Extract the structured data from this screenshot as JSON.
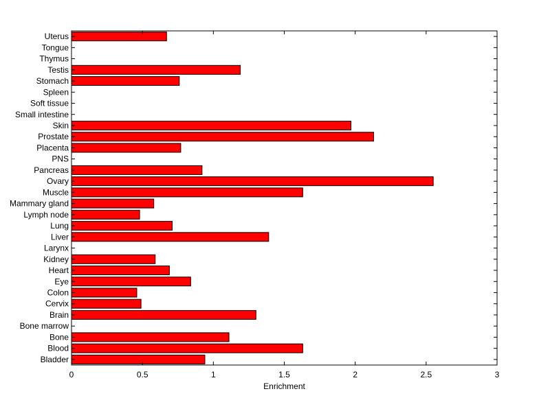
{
  "chart_data": {
    "type": "bar",
    "orientation": "horizontal",
    "title": "",
    "xlabel": "Enrichment",
    "ylabel": "",
    "xlim": [
      0,
      3
    ],
    "xticks": [
      0,
      0.5,
      1,
      1.5,
      2,
      2.5,
      3
    ],
    "xtick_labels": [
      "0",
      "0.5",
      "1",
      "1.5",
      "2",
      "2.5",
      "3"
    ],
    "grid": false,
    "legend": "none",
    "categories": [
      "Bladder",
      "Blood",
      "Bone",
      "Bone marrow",
      "Brain",
      "Cervix",
      "Colon",
      "Eye",
      "Heart",
      "Kidney",
      "Larynx",
      "Liver",
      "Lung",
      "Lymph node",
      "Mammary gland",
      "Muscle",
      "Ovary",
      "Pancreas",
      "PNS",
      "Placenta",
      "Prostate",
      "Skin",
      "Small intestine",
      "Soft tissue",
      "Spleen",
      "Stomach",
      "Testis",
      "Thymus",
      "Tongue",
      "Uterus"
    ],
    "values": [
      0.94,
      1.63,
      1.11,
      0,
      1.3,
      0.49,
      0.46,
      0.84,
      0.69,
      0.59,
      0,
      1.39,
      0.71,
      0.48,
      0.58,
      1.63,
      2.55,
      0.92,
      0,
      0.77,
      2.13,
      1.97,
      0,
      0,
      0,
      0.76,
      1.19,
      0,
      0,
      0.67
    ],
    "colors": {
      "bar_fill": "#ff0000",
      "bar_edge": "#000000",
      "axes": "#000000",
      "background": "#ffffff"
    }
  }
}
